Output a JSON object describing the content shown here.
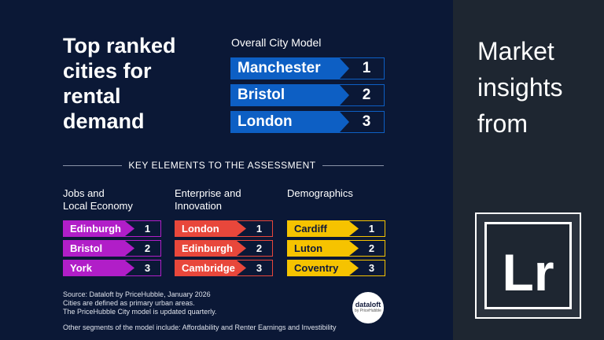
{
  "header": {
    "title": [
      "Top ranked",
      "cities for",
      "rental",
      "demand"
    ]
  },
  "overall": {
    "title": "Overall City Model",
    "color": "#0d5fc4",
    "text_color": "#ffffff",
    "rows": [
      {
        "city": "Manchester",
        "rank": 1
      },
      {
        "city": "Bristol",
        "rank": 2
      },
      {
        "city": "London",
        "rank": 3
      }
    ]
  },
  "key_elements": {
    "title": "KEY ELEMENTS TO THE ASSESSMENT",
    "groups": [
      {
        "title": [
          "Jobs and",
          "Local Economy"
        ],
        "color": "#b11ec8",
        "text_color": "#ffffff",
        "rows": [
          {
            "city": "Edinburgh",
            "rank": 1
          },
          {
            "city": "Bristol",
            "rank": 2
          },
          {
            "city": "York",
            "rank": 3
          }
        ]
      },
      {
        "title": [
          "Enterprise and",
          "Innovation"
        ],
        "color": "#e8473b",
        "text_color": "#ffffff",
        "rows": [
          {
            "city": "London",
            "rank": 1
          },
          {
            "city": "Edinburgh",
            "rank": 2
          },
          {
            "city": "Cambridge",
            "rank": 3
          }
        ]
      },
      {
        "title": [
          "Demographics"
        ],
        "color": "#f6c300",
        "text_color": "#10193a",
        "rows": [
          {
            "city": "Cardiff",
            "rank": 1
          },
          {
            "city": "Luton",
            "rank": 2
          },
          {
            "city": "Coventry",
            "rank": 3
          }
        ]
      }
    ]
  },
  "footer": {
    "source": "Source: Dataloft by PriceHubble, January 2026",
    "notes": [
      "Cities are defined as primary urban areas.",
      "The PriceHubble City model is updated quarterly."
    ],
    "other": "Other segments of the model include: Affordability and Renter Earnings and Investibility"
  },
  "logo": {
    "name": "dataloft",
    "sub": "by PriceHubble"
  },
  "sidebar": {
    "text": [
      "Market",
      "insights",
      "from"
    ],
    "logo": "Lr"
  }
}
